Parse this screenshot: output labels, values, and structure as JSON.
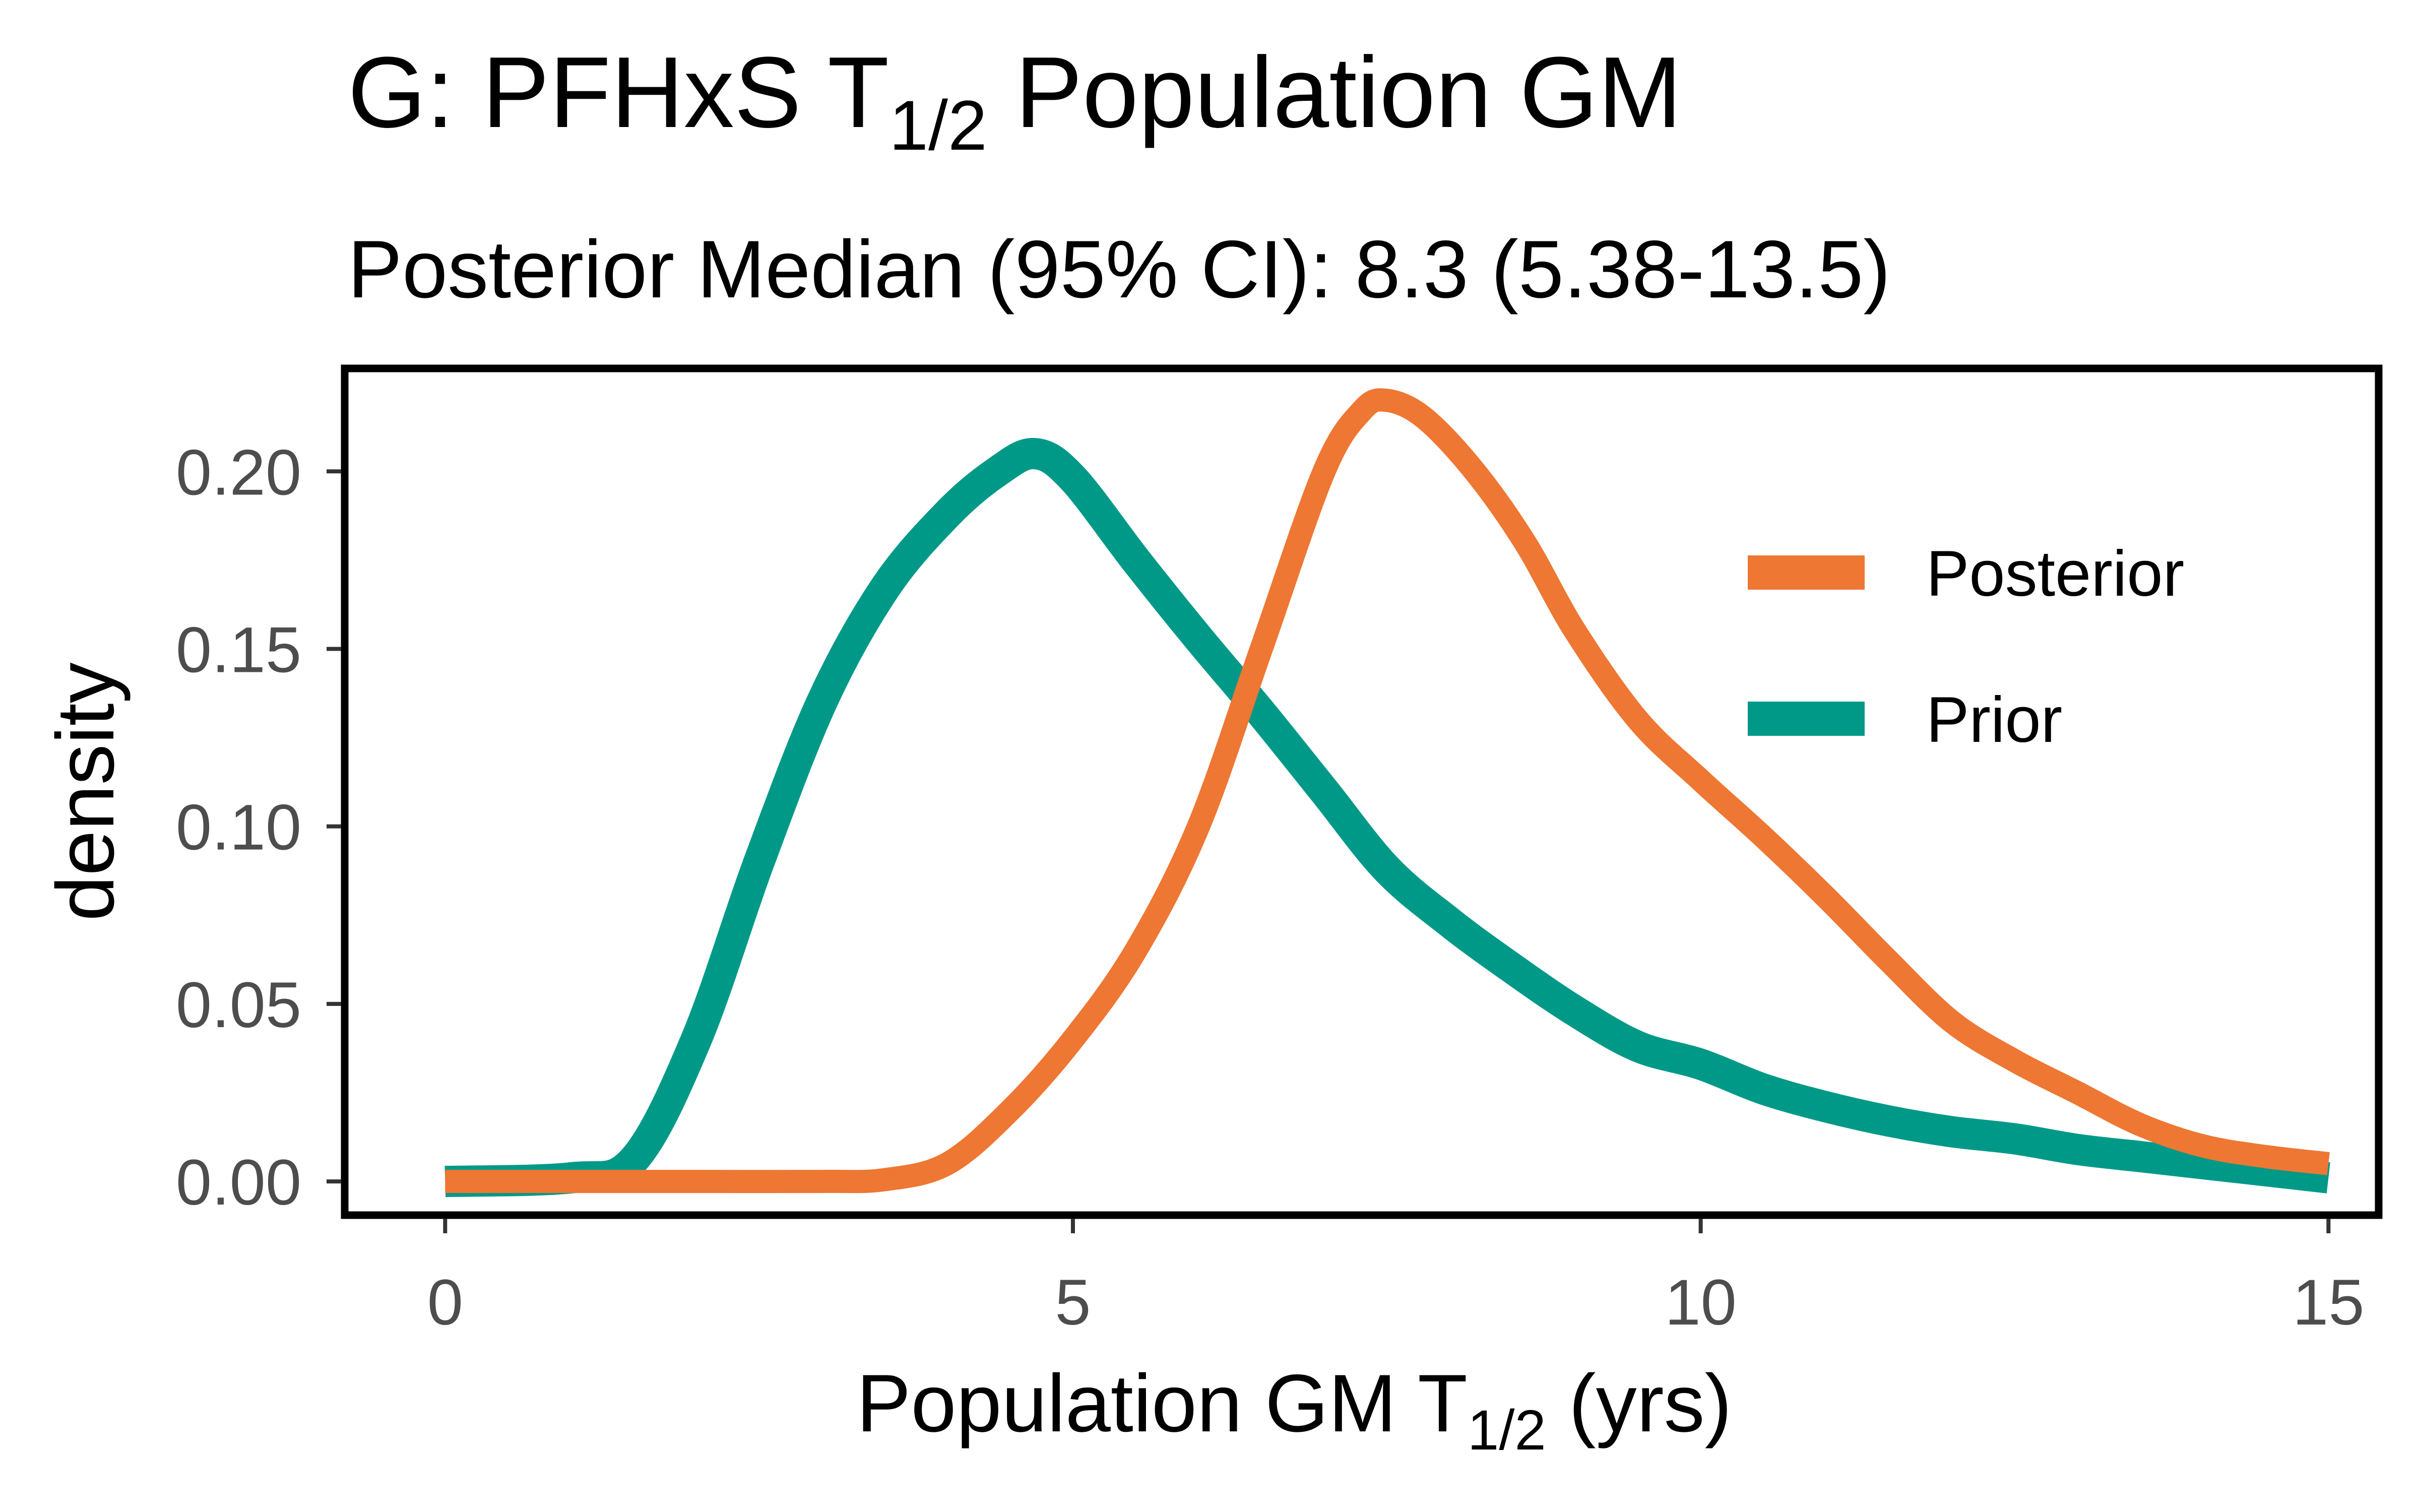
{
  "chart_data": {
    "type": "line",
    "title": {
      "prefix": "G: PFHxS T",
      "subscript": "1/2",
      "suffix": " Population GM"
    },
    "subtitle": "Posterior Median (95% CI): 8.3 (5.38-13.5)",
    "xlabel": {
      "prefix": "Population GM T",
      "subscript": "1/2",
      "suffix": " (yrs)"
    },
    "ylabel": "density",
    "xlim": [
      -0.8,
      15.4
    ],
    "ylim": [
      -0.0095,
      0.229
    ],
    "x_ticks": [
      0,
      5,
      10,
      15
    ],
    "x_tick_labels": [
      "0",
      "5",
      "10",
      "15"
    ],
    "y_ticks": [
      0,
      0.05,
      0.1,
      0.15,
      0.2
    ],
    "y_tick_labels": [
      "0.00",
      "0.05",
      "0.10",
      "0.15",
      "0.20"
    ],
    "grid": false,
    "legend_position": "top-right",
    "series": [
      {
        "name": "Posterior",
        "color": "#EE7733",
        "x": [
          0,
          1,
          2,
          3,
          3.5,
          4,
          4.5,
          5,
          5.5,
          6,
          6.5,
          7,
          7.3,
          7.5,
          7.8,
          8.2,
          8.6,
          9,
          9.5,
          10,
          10.5,
          11,
          11.5,
          12,
          12.5,
          13,
          13.5,
          14,
          14.5,
          15
        ],
        "y": [
          0,
          0,
          0,
          0,
          0.0005,
          0.005,
          0.02,
          0.04,
          0.065,
          0.1,
          0.15,
          0.2,
          0.217,
          0.22,
          0.215,
          0.2,
          0.18,
          0.155,
          0.13,
          0.113,
          0.097,
          0.08,
          0.062,
          0.045,
          0.034,
          0.025,
          0.016,
          0.01,
          0.007,
          0.005
        ]
      },
      {
        "name": "Prior",
        "color": "#009988",
        "x": [
          0,
          1,
          1.5,
          2,
          2.5,
          3,
          3.5,
          4,
          4.4,
          4.7,
          5,
          5.5,
          6,
          6.5,
          7,
          7.5,
          8,
          8.5,
          9,
          9.5,
          10,
          10.5,
          11,
          11.5,
          12,
          12.5,
          13,
          13.5,
          14,
          14.5,
          15
        ],
        "y": [
          0,
          0.001,
          0.006,
          0.04,
          0.09,
          0.135,
          0.167,
          0.188,
          0.2,
          0.205,
          0.198,
          0.175,
          0.153,
          0.132,
          0.11,
          0.088,
          0.073,
          0.06,
          0.048,
          0.038,
          0.033,
          0.026,
          0.021,
          0.017,
          0.014,
          0.012,
          0.009,
          0.007,
          0.005,
          0.003,
          0.001
        ]
      }
    ]
  }
}
